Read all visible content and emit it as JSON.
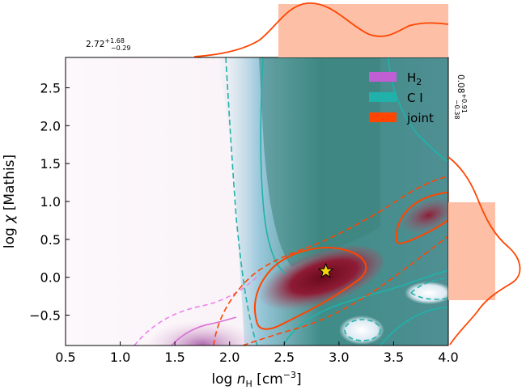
{
  "chart_data": {
    "type": "contour",
    "title": "",
    "xlabel": "log n_H [cm^-3]",
    "ylabel": "log χ [Mathis]",
    "xlim": [
      0.5,
      4.0
    ],
    "ylim": [
      -0.9,
      2.9
    ],
    "x_ticks": [
      0.5,
      1.0,
      1.5,
      2.0,
      2.5,
      3.0,
      3.5,
      4.0
    ],
    "x_tick_labels": [
      "0.5",
      "1.0",
      "1.5",
      "2.0",
      "2.5",
      "3.0",
      "3.5",
      "4.0"
    ],
    "y_ticks": [
      -0.5,
      0.0,
      0.5,
      1.0,
      1.5,
      2.0,
      2.5
    ],
    "y_tick_labels": [
      "−0.5",
      "0.0",
      "0.5",
      "1.0",
      "1.5",
      "2.0",
      "2.5"
    ],
    "legend": [
      {
        "label": "H2",
        "color": "#c05ed3"
      },
      {
        "label": "C I",
        "color": "#20b2aa"
      },
      {
        "label": "joint",
        "color": "#ff4500"
      }
    ],
    "best_fit": {
      "x": 2.88,
      "y": 0.08,
      "marker": "star",
      "color": "#f5d90a"
    },
    "x_estimate": {
      "value": "2.72",
      "upper": "+1.68",
      "lower": "−0.29"
    },
    "y_estimate": {
      "value": "0.08",
      "upper": "+0.91",
      "lower": "−0.38"
    },
    "x_marginal_shaded": [
      2.43,
      4.0
    ],
    "y_marginal_shaded": [
      -0.3,
      0.99
    ],
    "colors": {
      "joint": "#ff4500",
      "ci": "#20b2aa",
      "h2": "#c05ed3",
      "h2_light": "#ee82ee",
      "shade": "#fdbfa6",
      "ci_fill": "#2e8b7a",
      "joint_fill": "#7d0e22"
    }
  }
}
